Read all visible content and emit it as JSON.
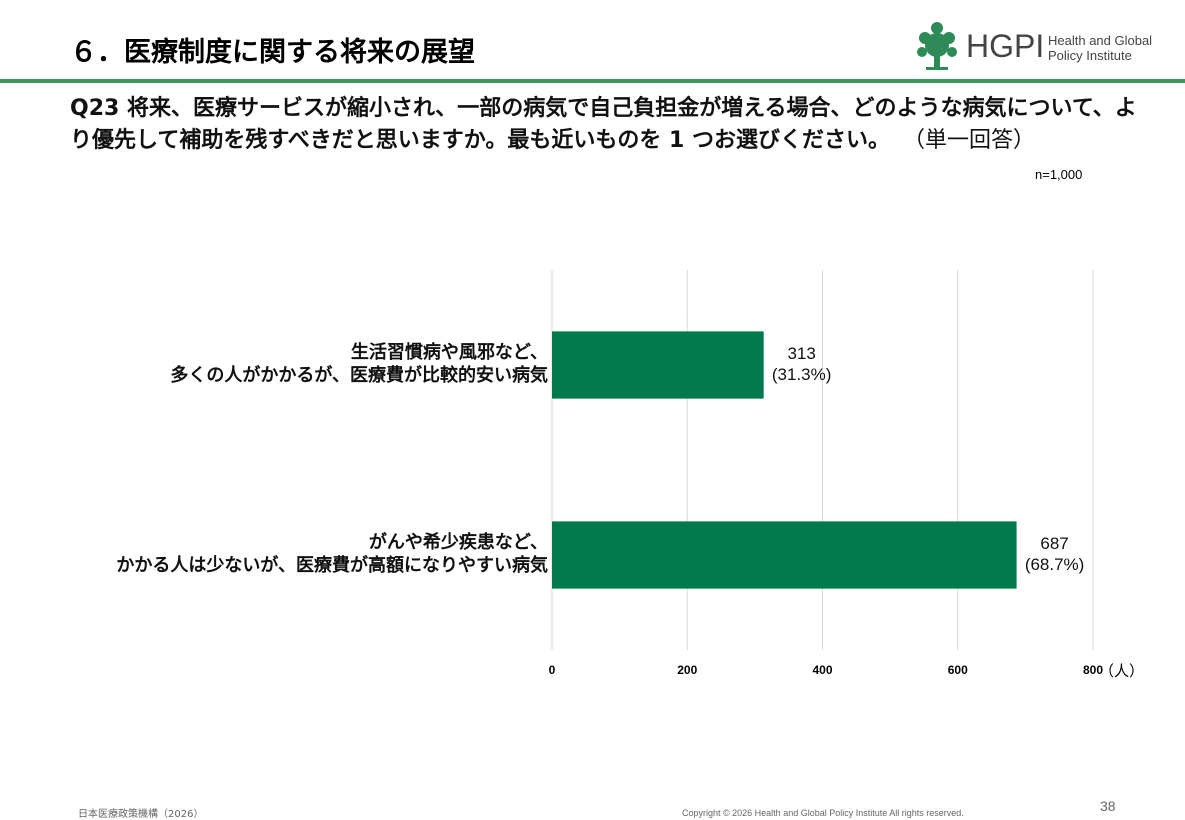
{
  "header": {
    "title": "６．医療制度に関する将来の展望",
    "logo_mark": "HGPI",
    "logo_text": "Health and Global\nPolicy Institute"
  },
  "question": {
    "text": "Q23  将来、医療サービスが縮小され、一部の病気で自己負担金が増える場合、どのような病気について、より優先して補助を残すべきだと思いますか。最も近いものを 1 つお選びください。",
    "note": "（単一回答）"
  },
  "chart_data": {
    "type": "bar",
    "orientation": "horizontal",
    "sample_size": "n=1,000",
    "categories": [
      "生活習慣病や風邪など、\n多くの人がかかるが、医療費が比較的安い病気",
      "がんや希少疾患など、\nかかる人は少ないが、医療費が高額になりやすい病気"
    ],
    "values": [
      313,
      687
    ],
    "value_labels": [
      "313\n(31.3%)",
      "687\n(68.7%)"
    ],
    "color": "#007a4d",
    "xlim": [
      0,
      800
    ],
    "xticks": [
      0,
      200,
      400,
      600,
      800
    ],
    "xlabel": "（人）",
    "grid": true
  },
  "footer": {
    "org": "日本医療政策機構（2026）",
    "copyright": "Copyright © 2026 Health and Global Policy Institute  All rights reserved.",
    "page": "38"
  }
}
